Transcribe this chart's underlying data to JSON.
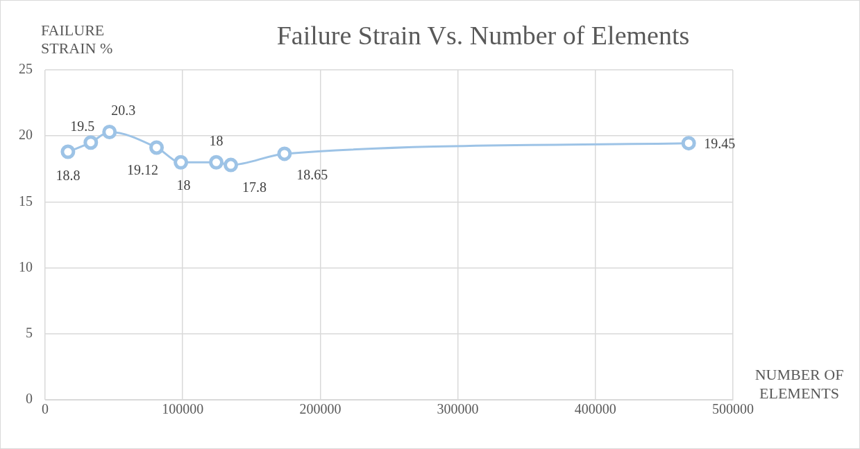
{
  "chart_data": {
    "type": "line",
    "title": "Failure Strain Vs. Number of Elements",
    "xlabel": "NUMBER OF ELEMENTS",
    "ylabel": "FAILURE STRAIN %",
    "x": [
      16600,
      33200,
      46800,
      81000,
      98700,
      124400,
      135000,
      174000,
      467800
    ],
    "series": [
      {
        "color": "#9dc3e6",
        "values": [
          18.8,
          19.5,
          20.3,
          19.12,
          18,
          18,
          17.8,
          18.65,
          19.45
        ]
      }
    ],
    "xlim": [
      0,
      500000
    ],
    "xticks": [
      0,
      100000,
      200000,
      300000,
      400000,
      500000
    ],
    "ylim": [
      0,
      25
    ],
    "yticks": [
      0,
      5,
      10,
      15,
      20,
      25
    ],
    "grid": true,
    "legend": false,
    "marker": "circle",
    "line_style": "solid",
    "data_labels": true
  }
}
